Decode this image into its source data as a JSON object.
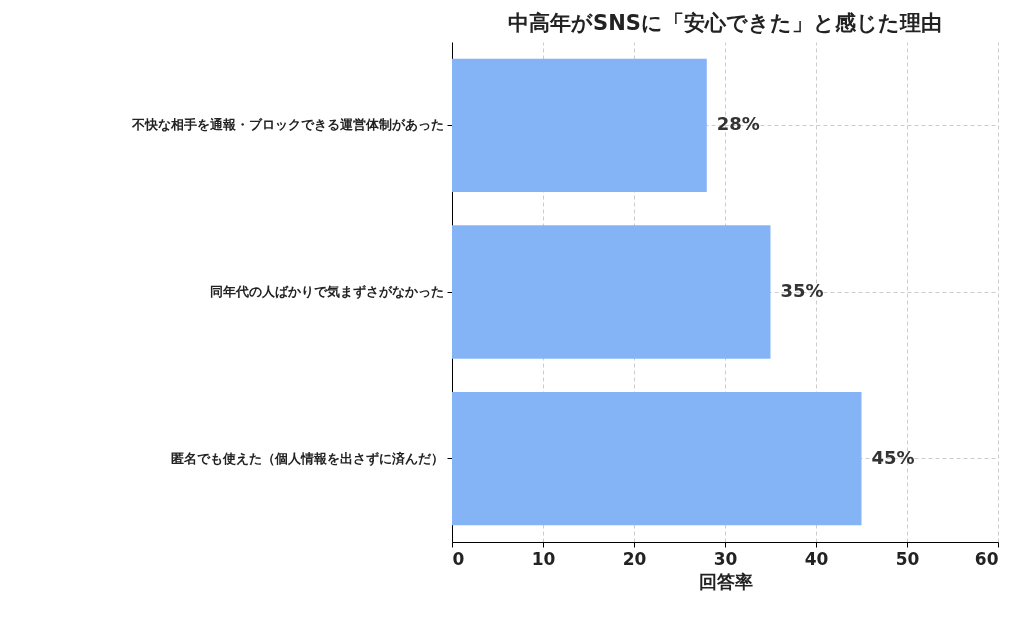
{
  "chart_data": {
    "type": "bar",
    "orientation": "horizontal",
    "title": "中高年がSNSに「安心できた」と感じた理由",
    "xlabel": "回答率",
    "categories": [
      "不快な相手を通報・ブロックできる運営体制があった",
      "同年代の人ばかりで気まずさがなかった",
      "匿名でも使えた（個人情報を出さずに済んだ）"
    ],
    "values": [
      28,
      35,
      45
    ],
    "value_labels": [
      "28%",
      "35%",
      "45%"
    ],
    "color": "#84b4f6",
    "xlim": [
      0,
      60
    ],
    "xticks": [
      0,
      10,
      20,
      30,
      40,
      50,
      60
    ],
    "grid": true
  }
}
